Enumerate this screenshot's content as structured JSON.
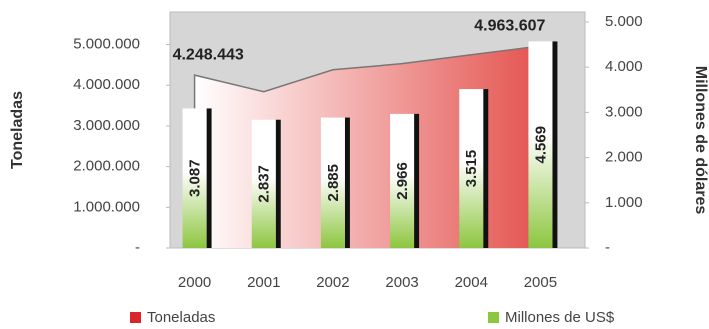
{
  "chart_data": {
    "type": "bar-area",
    "categories": [
      "2000",
      "2001",
      "2002",
      "2003",
      "2004",
      "2005"
    ],
    "series": [
      {
        "name": "Toneladas",
        "type": "area",
        "color": "#d9262b",
        "axis": "y",
        "values": [
          4248443,
          3840000,
          4380000,
          4530000,
          4750000,
          4963607
        ],
        "value_labels": [
          "4.248.443",
          null,
          null,
          null,
          null,
          "4.963.607"
        ]
      },
      {
        "name": "Millones de US$",
        "type": "bar",
        "color": "#8dc63f",
        "axis": "y2",
        "values": [
          3087,
          2837,
          2885,
          2966,
          3515,
          4569
        ],
        "value_labels": [
          "3.087",
          "2.837",
          "2.885",
          "2.966",
          "3.515",
          "4.569"
        ]
      }
    ],
    "ylabel": "Toneladas",
    "y2label": "Millones de dólares",
    "ylim": [
      0,
      5800000
    ],
    "yticks": [
      {
        "value": 0,
        "label": "-"
      },
      {
        "value": 1000000,
        "label": "1.000.000"
      },
      {
        "value": 2000000,
        "label": "2.000.000"
      },
      {
        "value": 3000000,
        "label": "3.000.000"
      },
      {
        "value": 4000000,
        "label": "4.000.000"
      },
      {
        "value": 5000000,
        "label": "5.000.000"
      }
    ],
    "y2lim": [
      0,
      5220
    ],
    "y2ticks": [
      {
        "value": 0,
        "label": "-"
      },
      {
        "value": 1000,
        "label": "1.000"
      },
      {
        "value": 2000,
        "label": "2.000"
      },
      {
        "value": 3000,
        "label": "3.000"
      },
      {
        "value": 4000,
        "label": "4.000"
      },
      {
        "value": 5000,
        "label": "5.000"
      }
    ],
    "legend": "bottom"
  }
}
